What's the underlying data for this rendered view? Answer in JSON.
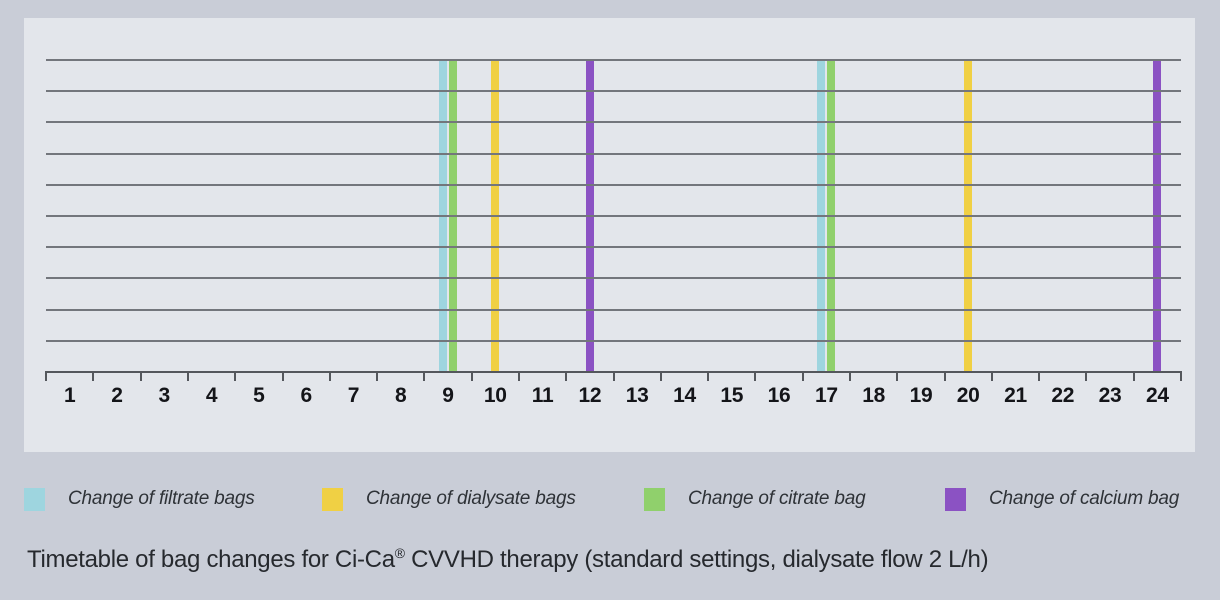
{
  "window": {
    "background_color": "#c9cdd7",
    "panel_color": "#e3e6eb"
  },
  "chart_data": {
    "type": "bar",
    "subtype": "event-timeline",
    "title": "Timetable of bag changes for Ci-Ca® CVVHD therapy (standard settings, dialysate flow 2 L/h)",
    "xlabel": "",
    "ylabel": "",
    "x_range": [
      0,
      24
    ],
    "x_tick_labels": [
      "1",
      "2",
      "3",
      "4",
      "5",
      "6",
      "7",
      "8",
      "9",
      "10",
      "11",
      "12",
      "13",
      "14",
      "15",
      "16",
      "17",
      "18",
      "19",
      "20",
      "21",
      "22",
      "23",
      "24"
    ],
    "grid": {
      "shown": true,
      "horizontal_line_count": 10,
      "color": "#73767c"
    },
    "axis_color": "#54575c",
    "tick_label_color": "#141519",
    "legend_position": "bottom",
    "series": [
      {
        "name": "filtrate",
        "label": "Change of filtrate bags",
        "color": "#9ed5df",
        "hours": [
          9,
          17
        ]
      },
      {
        "name": "dialysate",
        "label": "Change of dialysate bags",
        "color": "#f0d044",
        "hours": [
          10,
          20
        ]
      },
      {
        "name": "citrate",
        "label": "Change of citrate bag",
        "color": "#90d06c",
        "hours": [
          9,
          17
        ]
      },
      {
        "name": "calcium",
        "label": "Change of calcium bag",
        "color": "#8b52c3",
        "hours": [
          12,
          24
        ]
      }
    ]
  },
  "legend": {
    "items": [
      {
        "label": "Change of filtrate bags",
        "color": "#9ed5df"
      },
      {
        "label": "Change of dialysate bags",
        "color": "#f0d044"
      },
      {
        "label": "Change of citrate bag",
        "color": "#90d06c"
      },
      {
        "label": "Change of calcium bag",
        "color": "#8b52c3"
      }
    ]
  },
  "caption": {
    "text_before_reg": "Timetable of bag changes for Ci-Ca",
    "reg_mark": "®",
    "text_after_reg": " CVVHD therapy (standard settings, dialysate flow 2 L/h)"
  }
}
